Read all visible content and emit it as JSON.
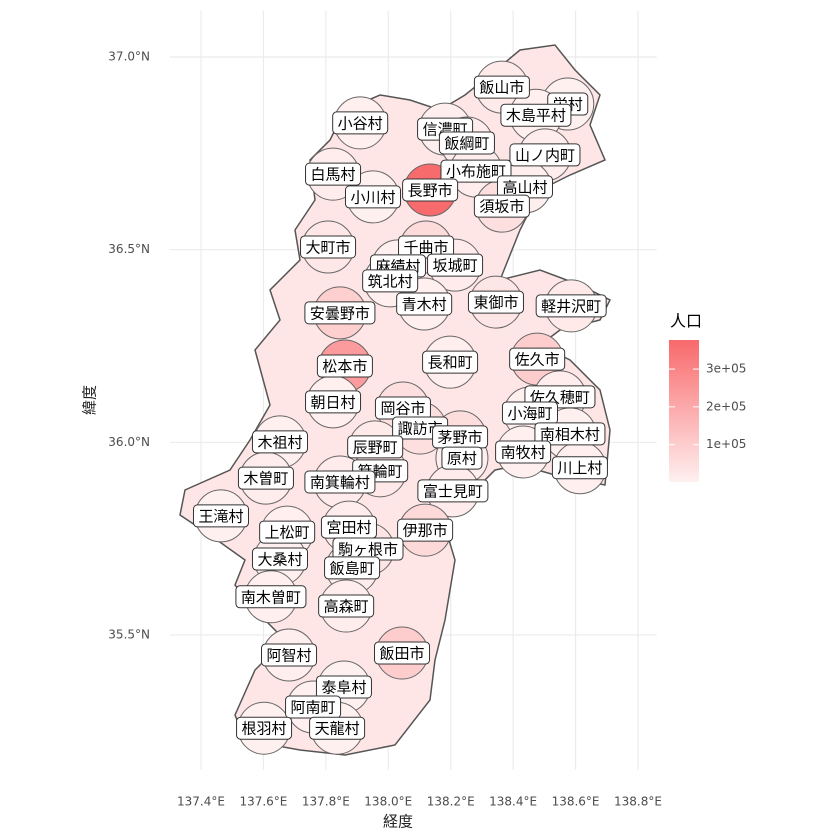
{
  "chart_data": {
    "type": "choropleth",
    "x_label": "経度",
    "y_label": "緯度",
    "legend_title": "人口",
    "xlim": [
      137.3,
      138.86
    ],
    "ylim": [
      35.15,
      37.12
    ],
    "xticks": [
      {
        "value": 137.4,
        "label": "137.4°E"
      },
      {
        "value": 137.6,
        "label": "137.6°E"
      },
      {
        "value": 137.8,
        "label": "137.8°E"
      },
      {
        "value": 138.0,
        "label": "138.0°E"
      },
      {
        "value": 138.2,
        "label": "138.2°E"
      },
      {
        "value": 138.4,
        "label": "138.4°E"
      },
      {
        "value": 138.6,
        "label": "138.6°E"
      },
      {
        "value": 138.8,
        "label": "138.8°E"
      }
    ],
    "yticks": [
      {
        "value": 35.5,
        "label": "35.5°N"
      },
      {
        "value": 36.0,
        "label": "36.0°N"
      },
      {
        "value": 36.5,
        "label": "36.5°N"
      },
      {
        "value": 37.0,
        "label": "37.0°N"
      }
    ],
    "grid": true,
    "color_low": "#fff0f0",
    "color_high": "#f8696b",
    "color_range": [
      1000,
      377000
    ],
    "color_ticks": [
      {
        "value": 100000,
        "label": "1e+05"
      },
      {
        "value": 200000,
        "label": "2e+05"
      },
      {
        "value": 300000,
        "label": "3e+05"
      }
    ],
    "regions": [
      {
        "name": "飯山市",
        "lon": 138.364,
        "lat": 36.922,
        "population": 19000
      },
      {
        "name": "栄村",
        "lon": 138.575,
        "lat": 36.878,
        "population": 1700
      },
      {
        "name": "木島平村",
        "lon": 138.473,
        "lat": 36.849,
        "population": 4400
      },
      {
        "name": "小谷村",
        "lon": 137.91,
        "lat": 36.829,
        "population": 2800
      },
      {
        "name": "信濃町",
        "lon": 138.182,
        "lat": 36.813,
        "population": 7800
      },
      {
        "name": "飯綱町",
        "lon": 138.252,
        "lat": 36.777,
        "population": 10600
      },
      {
        "name": "山ノ内町",
        "lon": 138.502,
        "lat": 36.746,
        "population": 11000
      },
      {
        "name": "白馬村",
        "lon": 137.823,
        "lat": 36.696,
        "population": 8900
      },
      {
        "name": "小布施町",
        "lon": 138.281,
        "lat": 36.704,
        "population": 10700
      },
      {
        "name": "高山村",
        "lon": 138.438,
        "lat": 36.663,
        "population": 6500
      },
      {
        "name": "小川村",
        "lon": 137.951,
        "lat": 36.637,
        "population": 2300
      },
      {
        "name": "長野市",
        "lon": 138.134,
        "lat": 36.655,
        "population": 372000
      },
      {
        "name": "須坂市",
        "lon": 138.364,
        "lat": 36.613,
        "population": 49600
      },
      {
        "name": "大町市",
        "lon": 137.807,
        "lat": 36.507,
        "population": 26000
      },
      {
        "name": "千曲市",
        "lon": 138.121,
        "lat": 36.507,
        "population": 59000
      },
      {
        "name": "麻績村",
        "lon": 138.031,
        "lat": 36.458,
        "population": 2600
      },
      {
        "name": "坂城町",
        "lon": 138.214,
        "lat": 36.46,
        "population": 14000
      },
      {
        "name": "筑北村",
        "lon": 138.006,
        "lat": 36.419,
        "population": 4200
      },
      {
        "name": "青木村",
        "lon": 138.115,
        "lat": 36.359,
        "population": 4300
      },
      {
        "name": "東御市",
        "lon": 138.345,
        "lat": 36.364,
        "population": 29600
      },
      {
        "name": "軽井沢町",
        "lon": 138.586,
        "lat": 36.354,
        "population": 20000
      },
      {
        "name": "安曇野市",
        "lon": 137.845,
        "lat": 36.336,
        "population": 94000
      },
      {
        "name": "松本市",
        "lon": 137.861,
        "lat": 36.198,
        "population": 237000
      },
      {
        "name": "長和町",
        "lon": 138.198,
        "lat": 36.208,
        "population": 5700
      },
      {
        "name": "佐久市",
        "lon": 138.477,
        "lat": 36.216,
        "population": 98000
      },
      {
        "name": "佐久穂町",
        "lon": 138.55,
        "lat": 36.118,
        "population": 10000
      },
      {
        "name": "朝日村",
        "lon": 137.823,
        "lat": 36.105,
        "population": 4200
      },
      {
        "name": "岡谷市",
        "lon": 138.047,
        "lat": 36.089,
        "population": 48000
      },
      {
        "name": "小海町",
        "lon": 138.454,
        "lat": 36.076,
        "population": 4300
      },
      {
        "name": "南相木村",
        "lon": 138.582,
        "lat": 36.022,
        "population": 900
      },
      {
        "name": "諏訪市",
        "lon": 138.102,
        "lat": 36.037,
        "population": 48000
      },
      {
        "name": "茅野市",
        "lon": 138.23,
        "lat": 36.014,
        "population": 55000
      },
      {
        "name": "木祖村",
        "lon": 137.653,
        "lat": 36.001,
        "population": 2600
      },
      {
        "name": "辰野町",
        "lon": 137.958,
        "lat": 35.988,
        "population": 18000
      },
      {
        "name": "原村",
        "lon": 138.236,
        "lat": 35.959,
        "population": 7900
      },
      {
        "name": "南牧村",
        "lon": 138.432,
        "lat": 35.975,
        "population": 3000
      },
      {
        "name": "川上村",
        "lon": 138.614,
        "lat": 35.934,
        "population": 4000
      },
      {
        "name": "木曽町",
        "lon": 137.608,
        "lat": 35.907,
        "population": 10000
      },
      {
        "name": "箕輪町",
        "lon": 137.974,
        "lat": 35.926,
        "population": 24000
      },
      {
        "name": "南箕輪村",
        "lon": 137.845,
        "lat": 35.897,
        "population": 15600
      },
      {
        "name": "富士見町",
        "lon": 138.207,
        "lat": 35.874,
        "population": 14000
      },
      {
        "name": "王滝村",
        "lon": 137.464,
        "lat": 35.809,
        "population": 700
      },
      {
        "name": "上松町",
        "lon": 137.676,
        "lat": 35.767,
        "population": 4000
      },
      {
        "name": "宮田村",
        "lon": 137.874,
        "lat": 35.78,
        "population": 8800
      },
      {
        "name": "伊那市",
        "lon": 138.118,
        "lat": 35.772,
        "population": 65000
      },
      {
        "name": "駒ヶ根市",
        "lon": 137.935,
        "lat": 35.723,
        "population": 31000
      },
      {
        "name": "大桑村",
        "lon": 137.653,
        "lat": 35.697,
        "population": 3400
      },
      {
        "name": "飯島町",
        "lon": 137.884,
        "lat": 35.674,
        "population": 9000
      },
      {
        "name": "南木曽町",
        "lon": 137.624,
        "lat": 35.599,
        "population": 3800
      },
      {
        "name": "高森町",
        "lon": 137.865,
        "lat": 35.575,
        "population": 12800
      },
      {
        "name": "飯田市",
        "lon": 138.044,
        "lat": 35.453,
        "population": 98000
      },
      {
        "name": "阿智村",
        "lon": 137.682,
        "lat": 35.448,
        "population": 6000
      },
      {
        "name": "泰阜村",
        "lon": 137.858,
        "lat": 35.365,
        "population": 1600
      },
      {
        "name": "阿南町",
        "lon": 137.759,
        "lat": 35.313,
        "population": 4300
      },
      {
        "name": "根羽村",
        "lon": 137.602,
        "lat": 35.258,
        "population": 800
      },
      {
        "name": "天龍村",
        "lon": 137.836,
        "lat": 35.258,
        "population": 1100
      }
    ]
  }
}
